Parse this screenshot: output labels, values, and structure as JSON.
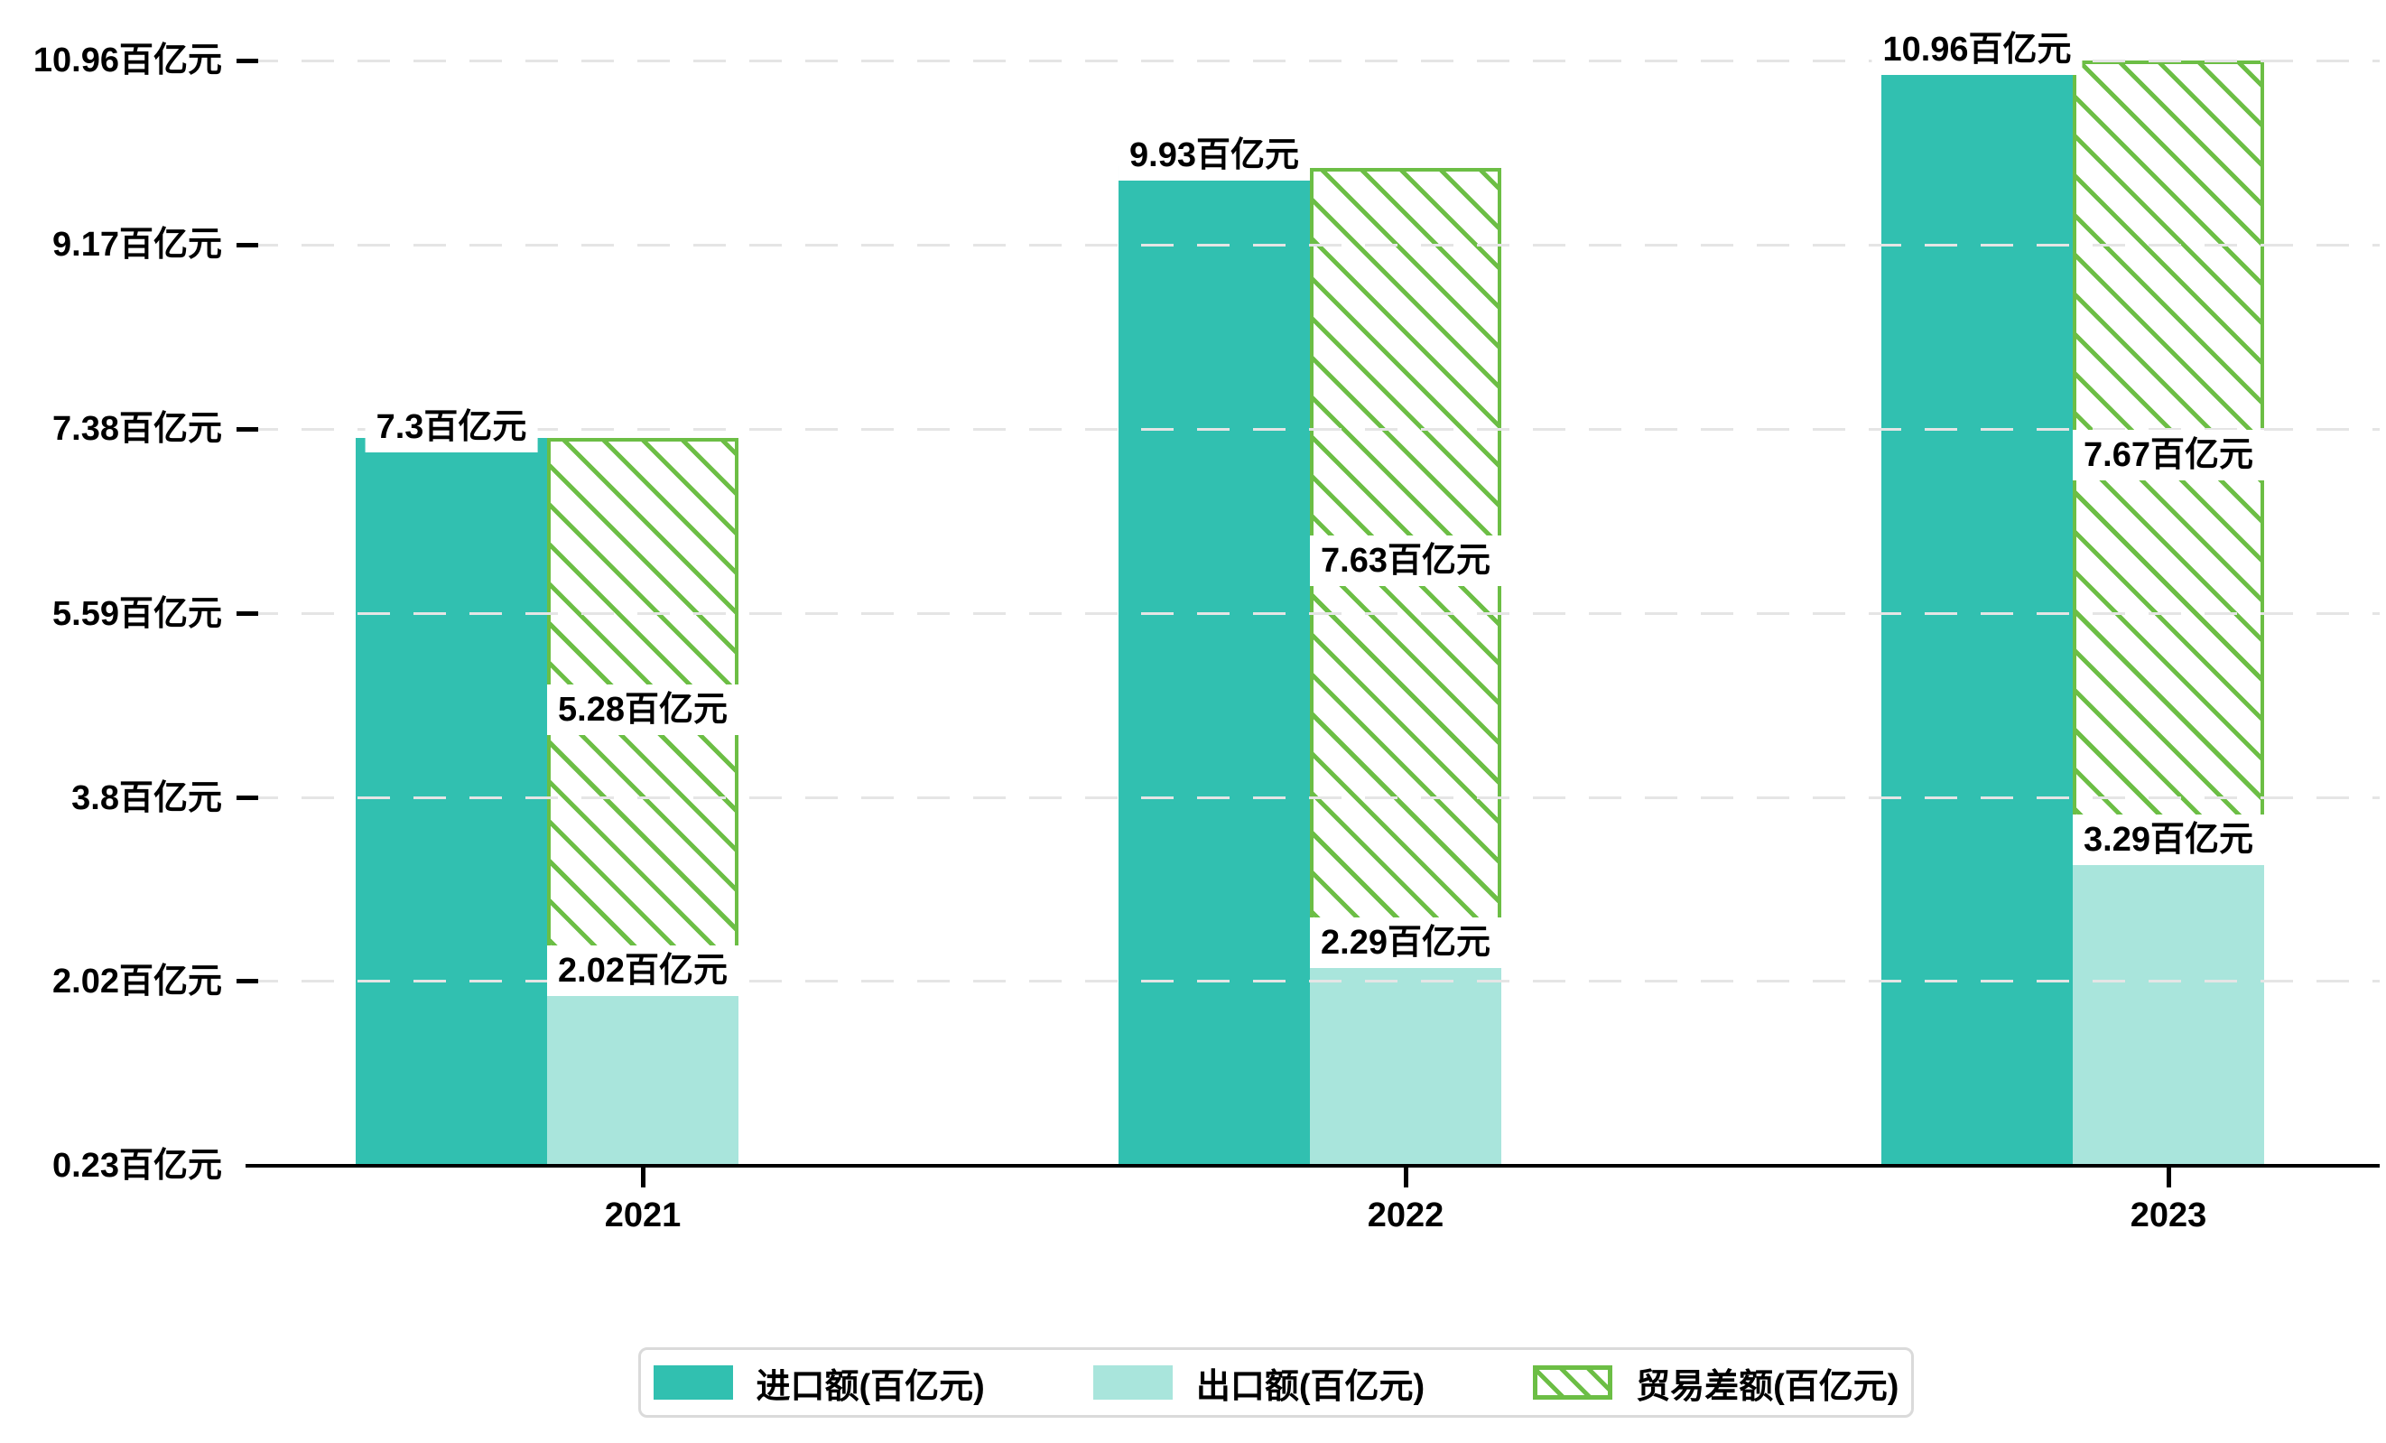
{
  "chart_data": {
    "type": "bar",
    "title": "",
    "unit": "百亿元",
    "categories": [
      "2021",
      "2022",
      "2023"
    ],
    "series": [
      {
        "key": "imports",
        "name": "进口额(百亿元)",
        "style": "solid",
        "color": "#31c0b0",
        "values": [
          7.3,
          9.93,
          10.96
        ],
        "data_labels": [
          "7.3百亿元",
          "9.93百亿元",
          "10.96百亿元"
        ]
      },
      {
        "key": "exports",
        "name": "出口额(百亿元)",
        "style": "solid",
        "color": "#a9e5dc",
        "values": [
          2.02,
          2.29,
          3.29
        ],
        "data_labels": [
          "2.02百亿元",
          "2.29百亿元",
          "3.29百亿元"
        ]
      },
      {
        "key": "trade-balance",
        "name": "贸易差额(百亿元)",
        "style": "hatched",
        "color": "#6cbe45",
        "stacked_on": "exports",
        "values": [
          5.28,
          7.63,
          7.67
        ],
        "data_labels": [
          "5.28百亿元",
          "7.63百亿元",
          "7.67百亿元"
        ]
      }
    ],
    "y_axis": {
      "ticks": [
        0.23,
        2.02,
        3.8,
        5.59,
        7.38,
        9.17,
        10.96
      ],
      "tick_labels": [
        "0.23百亿元",
        "2.02百亿元",
        "3.8百亿元",
        "5.59百亿元",
        "7.38百亿元",
        "9.17百亿元",
        "10.96百亿元"
      ],
      "ylim": [
        0.23,
        10.96
      ]
    },
    "grid": {
      "horizontal": true,
      "style": "dashed",
      "color": "#e5e5e5",
      "above_bars": true
    },
    "legend": {
      "position": "bottom-center",
      "items": [
        "进口额(百亿元)",
        "出口额(百亿元)",
        "贸易差额(百亿元)"
      ]
    }
  },
  "colors": {
    "imports": "#31c0b0",
    "exports": "#a9e5dc",
    "trade_balance": "#6cbe45",
    "axis": "#000000",
    "text": "#000000",
    "grid": "#e5e5e5",
    "legend_border": "#dadada",
    "label_background": "#ffffff"
  }
}
